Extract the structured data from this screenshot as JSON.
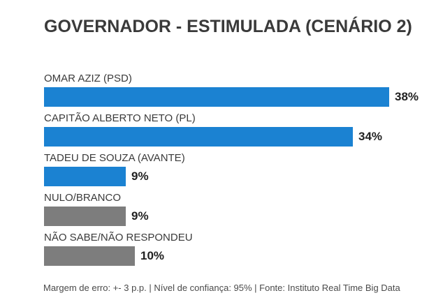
{
  "title": "GOVERNADOR - ESTIMULADA (CENÁRIO 2)",
  "footer": "Margem de erro: +- 3 p.p. | Nível de confiança: 95% | Fonte: Instituto Real Time Big Data",
  "colors": {
    "background": "#ffffff",
    "title_text": "#3a3a3a",
    "label_text": "#3a3a3a",
    "value_text": "#222222",
    "bar_blue": "#1b82d2",
    "bar_gray": "#7d7d7d"
  },
  "chart_data": {
    "type": "bar",
    "orientation": "horizontal",
    "title": "GOVERNADOR - ESTIMULADA (CENÁRIO 2)",
    "categories": [
      "OMAR AZIZ (PSD)",
      "CAPITÃO ALBERTO NETO (PL)",
      "TADEU DE SOUZA (AVANTE)",
      "NULO/BRANCO",
      "NÃO SABE/NÃO RESPONDEU"
    ],
    "values": [
      38,
      34,
      9,
      9,
      10
    ],
    "value_labels": [
      "38%",
      "34%",
      "9%",
      "9%",
      "10%"
    ],
    "bar_colors": [
      "#1b82d2",
      "#1b82d2",
      "#1b82d2",
      "#7d7d7d",
      "#7d7d7d"
    ],
    "xlim": [
      0,
      38
    ],
    "grid": false,
    "legend": false,
    "annotation": "Margem de erro: +- 3 p.p. | Nível de confiança: 95% | Fonte: Instituto Real Time Big Data"
  }
}
